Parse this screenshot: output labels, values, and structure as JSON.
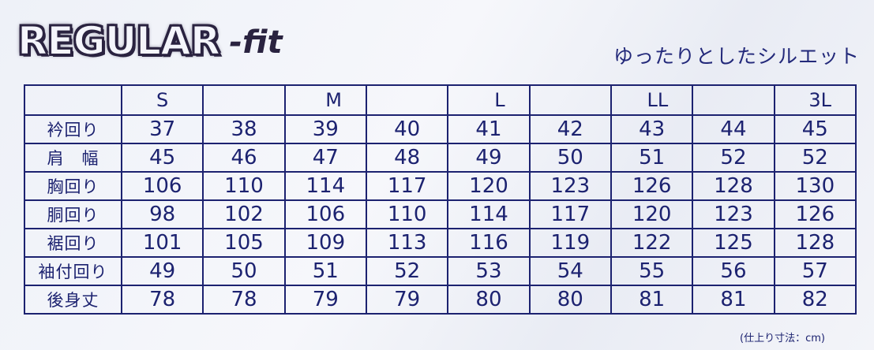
{
  "logo": {
    "main": "REGULAR",
    "sub": "-fit"
  },
  "subtitle": "ゆったりとしたシルエット",
  "table": {
    "header": [
      "",
      "S",
      "",
      "M",
      "",
      "L",
      "",
      "LL",
      "",
      "3L"
    ],
    "rows": [
      {
        "label": "衿回り",
        "values": [
          "37",
          "38",
          "39",
          "40",
          "41",
          "42",
          "43",
          "44",
          "45"
        ]
      },
      {
        "label": "肩　幅",
        "values": [
          "45",
          "46",
          "47",
          "48",
          "49",
          "50",
          "51",
          "52",
          "52"
        ]
      },
      {
        "label": "胸回り",
        "values": [
          "106",
          "110",
          "114",
          "117",
          "120",
          "123",
          "126",
          "128",
          "130"
        ]
      },
      {
        "label": "胴回り",
        "values": [
          "98",
          "102",
          "106",
          "110",
          "114",
          "117",
          "120",
          "123",
          "126"
        ]
      },
      {
        "label": "裾回り",
        "values": [
          "101",
          "105",
          "109",
          "113",
          "116",
          "119",
          "122",
          "125",
          "128"
        ]
      },
      {
        "label": "袖付回り",
        "values": [
          "49",
          "50",
          "51",
          "52",
          "53",
          "54",
          "55",
          "56",
          "57"
        ]
      },
      {
        "label": "後身丈",
        "values": [
          "78",
          "78",
          "79",
          "79",
          "80",
          "80",
          "81",
          "81",
          "82"
        ]
      }
    ]
  },
  "note": "(仕上り寸法：cm)"
}
